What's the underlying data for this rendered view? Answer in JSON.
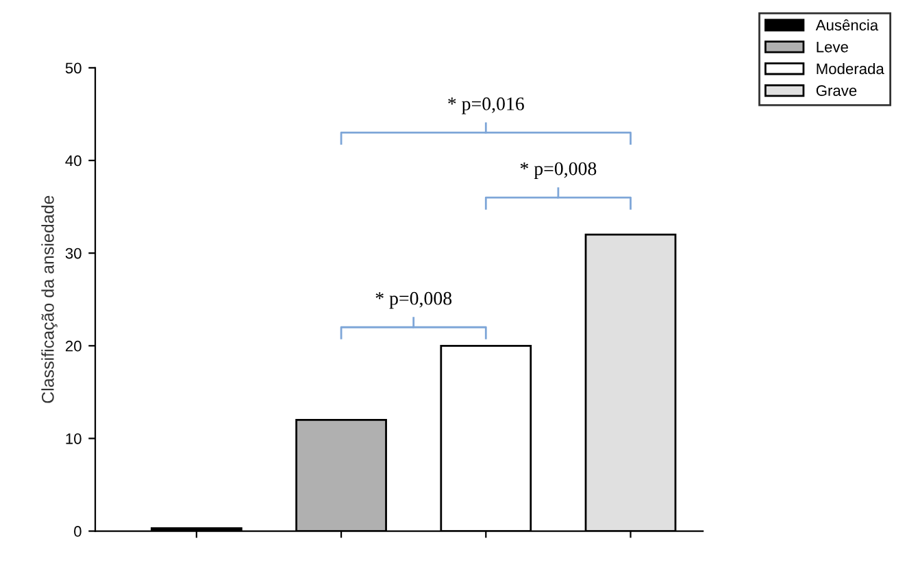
{
  "chart_data": {
    "type": "bar",
    "ylabel": "Classificação da ansiedade",
    "categories": [
      null,
      null,
      null,
      null
    ],
    "series": [
      {
        "name": "Ausência",
        "color": "#000000",
        "values": [
          0.3,
          null,
          null,
          null
        ]
      },
      {
        "name": "Leve",
        "color": "#b0b0b0",
        "values": [
          null,
          12,
          null,
          null
        ]
      },
      {
        "name": "Moderada",
        "color": "#ffffff",
        "values": [
          null,
          null,
          20,
          null
        ]
      },
      {
        "name": "Grave",
        "color": "#e0e0e0",
        "values": [
          null,
          null,
          null,
          32
        ]
      }
    ],
    "ylim": [
      0,
      50
    ],
    "yticks": [
      0,
      10,
      20,
      30,
      40,
      50
    ],
    "grid": false,
    "legend": "top right",
    "annotations": [
      "* p=0,008",
      "* p=0,008",
      "* p=0,016"
    ]
  }
}
